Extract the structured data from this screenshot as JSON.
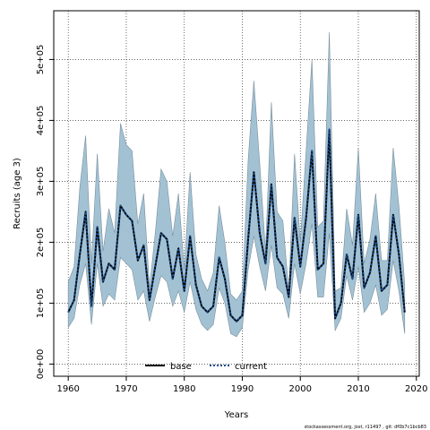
{
  "chart_data": {
    "type": "line",
    "xlabel": "Years",
    "ylabel": "Recruits (age 3)",
    "xlim": [
      1957.5,
      2020.5
    ],
    "ylim": [
      -20000,
      580000
    ],
    "x_ticks": [
      1960,
      1970,
      1980,
      1990,
      2000,
      2010,
      2020
    ],
    "x_tick_labels": [
      "1960",
      "1970",
      "1980",
      "1990",
      "2000",
      "2010",
      "2020"
    ],
    "y_ticks": [
      0,
      100000,
      200000,
      300000,
      400000,
      500000
    ],
    "y_tick_labels": [
      "0e+00",
      "1e+05",
      "2e+05",
      "3e+05",
      "4e+05",
      "5e+05"
    ],
    "grid": true,
    "legend_position": "bottom-center",
    "band_color": "#a2c2d4",
    "band_edge_color": "#7a8f9c",
    "x": [
      1960,
      1961,
      1962,
      1963,
      1964,
      1965,
      1966,
      1967,
      1968,
      1969,
      1970,
      1971,
      1972,
      1973,
      1974,
      1975,
      1976,
      1977,
      1978,
      1979,
      1980,
      1981,
      1982,
      1983,
      1984,
      1985,
      1986,
      1987,
      1988,
      1989,
      1990,
      1991,
      1992,
      1993,
      1994,
      1995,
      1996,
      1997,
      1998,
      1999,
      2000,
      2001,
      2002,
      2003,
      2004,
      2005,
      2006,
      2007,
      2008,
      2009,
      2010,
      2011,
      2012,
      2013,
      2014,
      2015,
      2016,
      2017,
      2018
    ],
    "upper": [
      135000,
      160000,
      290000,
      375000,
      165000,
      345000,
      185000,
      255000,
      215000,
      395000,
      360000,
      350000,
      230000,
      280000,
      125000,
      215000,
      320000,
      300000,
      210000,
      280000,
      155000,
      315000,
      180000,
      140000,
      120000,
      150000,
      260000,
      200000,
      115000,
      105000,
      120000,
      335000,
      465000,
      330000,
      185000,
      430000,
      250000,
      235000,
      120000,
      345000,
      200000,
      350000,
      500000,
      225000,
      235000,
      545000,
      120000,
      125000,
      255000,
      195000,
      355000,
      165000,
      205000,
      280000,
      170000,
      170000,
      355000,
      260000,
      130000
    ],
    "lower": [
      60000,
      75000,
      130000,
      165000,
      65000,
      165000,
      95000,
      115000,
      105000,
      175000,
      165000,
      155000,
      105000,
      120000,
      70000,
      110000,
      145000,
      135000,
      95000,
      120000,
      85000,
      135000,
      90000,
      65000,
      55000,
      65000,
      125000,
      100000,
      50000,
      45000,
      60000,
      155000,
      210000,
      160000,
      120000,
      195000,
      125000,
      115000,
      75000,
      165000,
      115000,
      165000,
      230000,
      110000,
      110000,
      215000,
      55000,
      75000,
      145000,
      105000,
      160000,
      85000,
      100000,
      130000,
      80000,
      90000,
      170000,
      120000,
      50000
    ],
    "series": [
      {
        "name": "base",
        "color": "#000000",
        "style": "solid",
        "values": [
          85000,
          105000,
          180000,
          250000,
          95000,
          225000,
          135000,
          165000,
          155000,
          260000,
          245000,
          235000,
          170000,
          195000,
          105000,
          160000,
          215000,
          205000,
          140000,
          190000,
          120000,
          210000,
          130000,
          95000,
          85000,
          95000,
          175000,
          140000,
          80000,
          70000,
          80000,
          205000,
          315000,
          215000,
          165000,
          295000,
          175000,
          160000,
          110000,
          240000,
          160000,
          240000,
          350000,
          155000,
          165000,
          385000,
          75000,
          100000,
          180000,
          140000,
          245000,
          125000,
          150000,
          210000,
          120000,
          130000,
          245000,
          180000,
          85000
        ]
      },
      {
        "name": "current",
        "color": "#1a4a8a",
        "style": "dotted",
        "values": [
          85000,
          105000,
          180000,
          250000,
          95000,
          225000,
          135000,
          165000,
          155000,
          260000,
          245000,
          235000,
          170000,
          195000,
          105000,
          160000,
          215000,
          205000,
          140000,
          190000,
          120000,
          210000,
          130000,
          95000,
          85000,
          95000,
          175000,
          140000,
          80000,
          70000,
          80000,
          205000,
          315000,
          215000,
          165000,
          295000,
          175000,
          160000,
          110000,
          240000,
          160000,
          240000,
          350000,
          155000,
          165000,
          385000,
          75000,
          100000,
          180000,
          140000,
          245000,
          125000,
          150000,
          210000,
          120000,
          130000,
          245000,
          180000,
          85000
        ]
      }
    ]
  },
  "legend": {
    "base_label": "base",
    "current_label": "current"
  },
  "footer_text": "stockassessment.org, jost, r11497 , git: df0b7c1bcb83"
}
